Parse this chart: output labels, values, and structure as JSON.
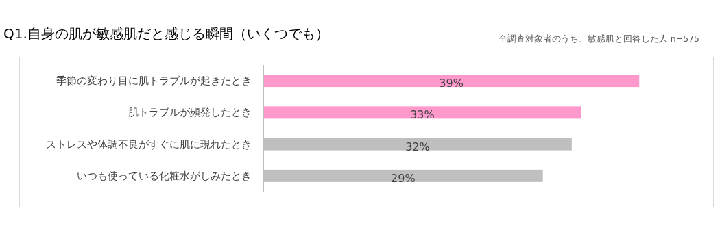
{
  "chart_data": {
    "type": "bar",
    "orientation": "horizontal",
    "title": "Q1.自身の肌が敏感肌だと感じる瞬間（いくつでも）",
    "annotations": [
      "全調査対象者のうち、敏感肌と回答した人 n=575"
    ],
    "categories": [
      "季節の変わり目に肌トラブルが起きたとき",
      "肌トラブルが頻発したとき",
      "ストレスや体調不良がすぐに肌に現れたとき",
      "いつも使っている化粧水がしみたとき"
    ],
    "values": [
      39,
      33,
      32,
      29
    ],
    "colors": [
      "#ff99cc",
      "#ff99cc",
      "#bfbfbf",
      "#bfbfbf"
    ],
    "value_labels": [
      "39%",
      "33%",
      "32%",
      "29%"
    ]
  }
}
